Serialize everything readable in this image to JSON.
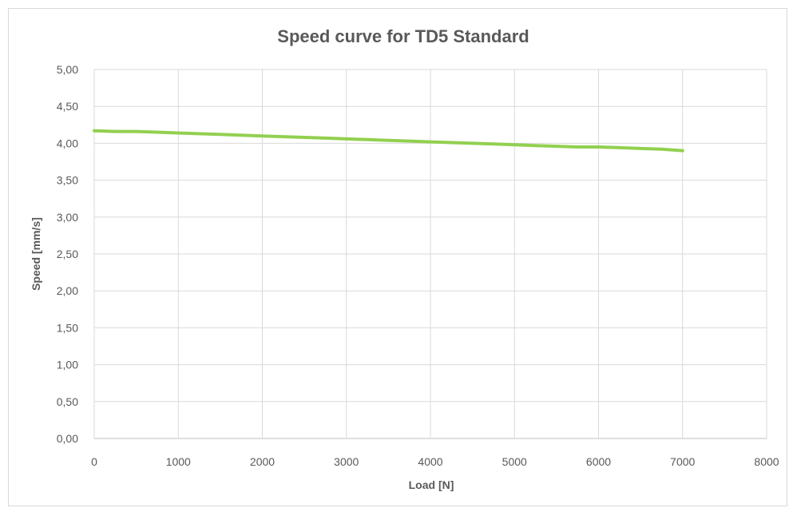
{
  "chart_data": {
    "type": "line",
    "title": "Speed curve for TD5 Standard",
    "xlabel": "Load [N]",
    "ylabel": "Speed [mm/s]",
    "xlim": [
      0,
      8000
    ],
    "ylim": [
      0,
      5
    ],
    "x_ticks": [
      "0",
      "1000",
      "2000",
      "3000",
      "4000",
      "5000",
      "6000",
      "7000",
      "8000"
    ],
    "y_ticks": [
      "0,00",
      "0,50",
      "1,00",
      "1,50",
      "2,00",
      "2,50",
      "3,00",
      "3,50",
      "4,00",
      "4,50",
      "5,00"
    ],
    "grid": true,
    "legend": "none",
    "series": [
      {
        "color": "#92d050",
        "x": [
          0,
          250,
          500,
          750,
          1000,
          1250,
          1500,
          1750,
          2000,
          2250,
          2500,
          2750,
          3000,
          3250,
          3500,
          3750,
          4000,
          4250,
          4500,
          4750,
          5000,
          5250,
          5500,
          5750,
          6000,
          6250,
          6500,
          6750,
          7000
        ],
        "y": [
          4.17,
          4.16,
          4.16,
          4.15,
          4.14,
          4.13,
          4.12,
          4.11,
          4.1,
          4.09,
          4.08,
          4.07,
          4.06,
          4.05,
          4.04,
          4.03,
          4.02,
          4.01,
          4.0,
          3.99,
          3.98,
          3.97,
          3.96,
          3.95,
          3.95,
          3.94,
          3.93,
          3.92,
          3.9
        ]
      }
    ]
  }
}
